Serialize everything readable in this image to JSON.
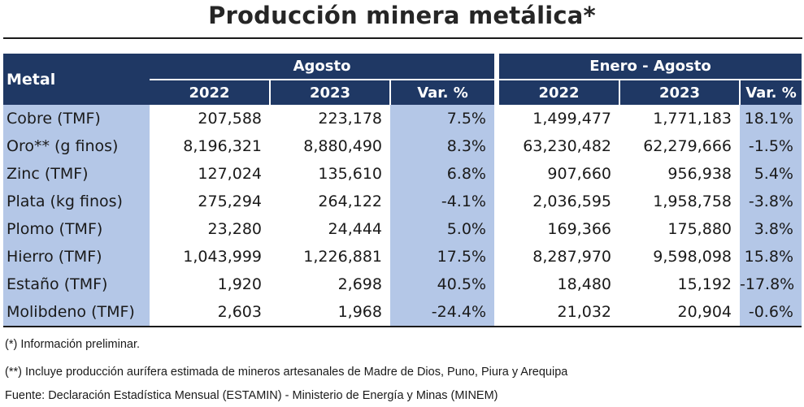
{
  "title": "Producción minera metálica*",
  "headers": {
    "metal": "Metal",
    "agosto": "Agosto",
    "enero_agosto": "Enero - Agosto",
    "y2022": "2022",
    "y2023": "2023",
    "var": "Var. %"
  },
  "rows": [
    {
      "name": "Cobre (TMF)",
      "ago_2022": "207,588",
      "ago_2023": "223,178",
      "ago_var": "7.5%",
      "ea_2022": "1,499,477",
      "ea_2023": "1,771,183",
      "ea_var": "18.1%"
    },
    {
      "name": "Oro** (g finos)",
      "ago_2022": "8,196,321",
      "ago_2023": "8,880,490",
      "ago_var": "8.3%",
      "ea_2022": "63,230,482",
      "ea_2023": "62,279,666",
      "ea_var": "-1.5%"
    },
    {
      "name": "Zinc (TMF)",
      "ago_2022": "127,024",
      "ago_2023": "135,610",
      "ago_var": "6.8%",
      "ea_2022": "907,660",
      "ea_2023": "956,938",
      "ea_var": "5.4%"
    },
    {
      "name": "Plata (kg finos)",
      "ago_2022": "275,294",
      "ago_2023": "264,122",
      "ago_var": "-4.1%",
      "ea_2022": "2,036,595",
      "ea_2023": "1,958,758",
      "ea_var": "-3.8%"
    },
    {
      "name": "Plomo (TMF)",
      "ago_2022": "23,280",
      "ago_2023": "24,444",
      "ago_var": "5.0%",
      "ea_2022": "169,366",
      "ea_2023": "175,880",
      "ea_var": "3.8%"
    },
    {
      "name": "Hierro (TMF)",
      "ago_2022": "1,043,999",
      "ago_2023": "1,226,881",
      "ago_var": "17.5%",
      "ea_2022": "8,287,970",
      "ea_2023": "9,598,098",
      "ea_var": "15.8%"
    },
    {
      "name": "Estaño (TMF)",
      "ago_2022": "1,920",
      "ago_2023": "2,698",
      "ago_var": "40.5%",
      "ea_2022": "18,480",
      "ea_2023": "15,192",
      "ea_var": "-17.8%"
    },
    {
      "name": "Molibdeno (TMF)",
      "ago_2022": "2,603",
      "ago_2023": "1,968",
      "ago_var": "-24.4%",
      "ea_2022": "21,032",
      "ea_2023": "20,904",
      "ea_var": "-0.6%"
    }
  ],
  "notes": {
    "preliminar": "(*) Información preliminar.",
    "aurifera": "(**) Incluye producción aurífera estimada de mineros artesanales de Madre de Dios, Puno, Piura y Arequipa",
    "fuente": "Fuente: Declaración Estadística Mensual (ESTAMIN) - Ministerio de Energía y Minas (MINEM)"
  },
  "colors": {
    "header_bg": "#1f3864",
    "highlight_bg": "#b4c7e7"
  }
}
